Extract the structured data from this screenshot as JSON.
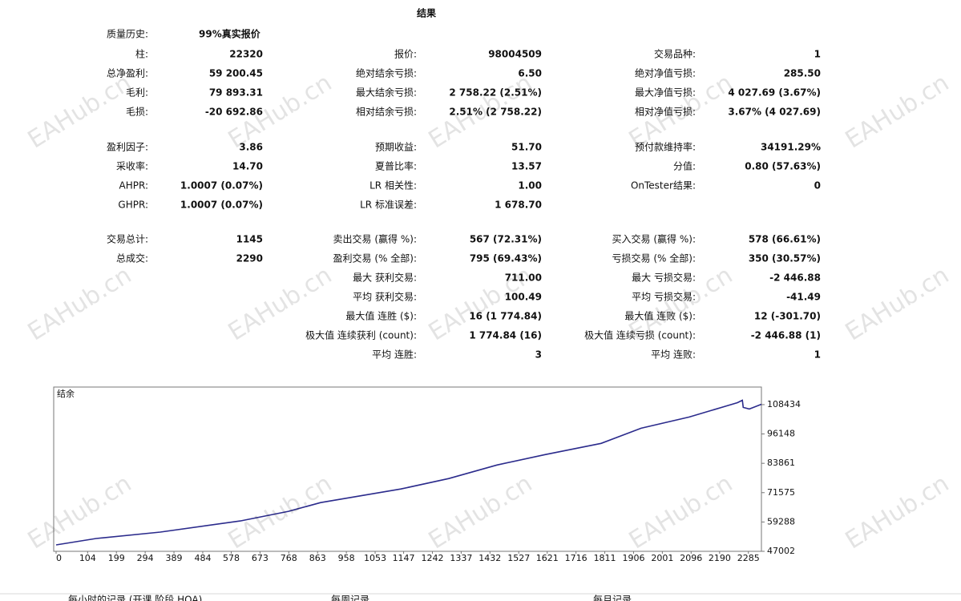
{
  "title": "结果",
  "watermark": "EAHub.cn",
  "quality": {
    "label": "质量历史:",
    "value": "99%真实报价"
  },
  "sections": [
    [
      [
        {
          "label": "柱:",
          "value": "22320"
        },
        {
          "label": "报价:",
          "value": "98004509"
        },
        {
          "label": "交易品种:",
          "value": "1"
        }
      ],
      [
        {
          "label": "总净盈利:",
          "value": "59 200.45"
        },
        {
          "label": "绝对结余亏损:",
          "value": "6.50"
        },
        {
          "label": "绝对净值亏损:",
          "value": "285.50"
        }
      ],
      [
        {
          "label": "毛利:",
          "value": "79 893.31"
        },
        {
          "label": "最大结余亏损:",
          "value": "2 758.22 (2.51%)"
        },
        {
          "label": "最大净值亏损:",
          "value": "4 027.69 (3.67%)"
        }
      ],
      [
        {
          "label": "毛损:",
          "value": "-20 692.86"
        },
        {
          "label": "相对结余亏损:",
          "value": "2.51% (2 758.22)"
        },
        {
          "label": "相对净值亏损:",
          "value": "3.67% (4 027.69)"
        }
      ]
    ],
    [
      [
        {
          "label": "盈利因子:",
          "value": "3.86"
        },
        {
          "label": "预期收益:",
          "value": "51.70"
        },
        {
          "label": "预付款维持率:",
          "value": "34191.29%"
        }
      ],
      [
        {
          "label": "采收率:",
          "value": "14.70"
        },
        {
          "label": "夏普比率:",
          "value": "13.57"
        },
        {
          "label": "分值:",
          "value": "0.80 (57.63%)"
        }
      ],
      [
        {
          "label": "AHPR:",
          "value": "1.0007 (0.07%)"
        },
        {
          "label": "LR 相关性:",
          "value": "1.00"
        },
        {
          "label": "OnTester结果:",
          "value": "0"
        }
      ],
      [
        {
          "label": "GHPR:",
          "value": "1.0007 (0.07%)"
        },
        {
          "label": "LR 标准误差:",
          "value": "1 678.70"
        },
        null
      ]
    ],
    [
      [
        {
          "label": "交易总计:",
          "value": "1145"
        },
        {
          "label": "卖出交易 (赢得 %):",
          "value": "567 (72.31%)"
        },
        {
          "label": "买入交易 (赢得 %):",
          "value": "578 (66.61%)"
        }
      ],
      [
        {
          "label": "总成交:",
          "value": "2290"
        },
        {
          "label": "盈利交易 (% 全部):",
          "value": "795 (69.43%)"
        },
        {
          "label": "亏损交易 (% 全部):",
          "value": "350 (30.57%)"
        }
      ],
      [
        null,
        {
          "label": "最大 获利交易:",
          "value": "711.00"
        },
        {
          "label": "最大 亏损交易:",
          "value": "-2 446.88"
        }
      ],
      [
        null,
        {
          "label": "平均 获利交易:",
          "value": "100.49"
        },
        {
          "label": "平均 亏损交易:",
          "value": "-41.49"
        }
      ],
      [
        null,
        {
          "label": "最大值 连胜 ($):",
          "value": "16 (1 774.84)"
        },
        {
          "label": "最大值 连败 ($):",
          "value": "12 (-301.70)"
        }
      ],
      [
        null,
        {
          "label": "极大值 连续获利 (count):",
          "value": "1 774.84 (16)"
        },
        {
          "label": "极大值 连续亏损 (count):",
          "value": "-2 446.88 (1)"
        }
      ],
      [
        null,
        {
          "label": "平均 连胜:",
          "value": "3"
        },
        {
          "label": "平均 连败:",
          "value": "1"
        }
      ]
    ]
  ],
  "chart": {
    "type": "line",
    "title": "结余",
    "color": "#2b2b8c",
    "x": [
      0,
      132,
      344,
      608,
      767,
      873,
      1138,
      1296,
      1455,
      1614,
      1799,
      1931,
      2090,
      2249,
      2265,
      2268,
      2288,
      2328
    ],
    "values": [
      49680,
      52360,
      55040,
      59720,
      63740,
      67420,
      73120,
      77470,
      83160,
      87510,
      92200,
      98560,
      103240,
      109270,
      110270,
      107260,
      106590,
      108600
    ],
    "xlim": [
      0,
      2328
    ],
    "ylim": [
      47002,
      115800
    ],
    "xticks": [
      0,
      104,
      199,
      294,
      389,
      484,
      578,
      673,
      768,
      863,
      958,
      1053,
      1147,
      1242,
      1337,
      1432,
      1527,
      1621,
      1716,
      1811,
      1906,
      2001,
      2096,
      2190,
      2285
    ],
    "yticks": [
      47002,
      59288,
      71575,
      83861,
      96148,
      108434
    ]
  },
  "footer_tabs": [
    "每小时的记录 (开课 阶段 HOA)",
    "每周记录",
    "每月记录"
  ]
}
